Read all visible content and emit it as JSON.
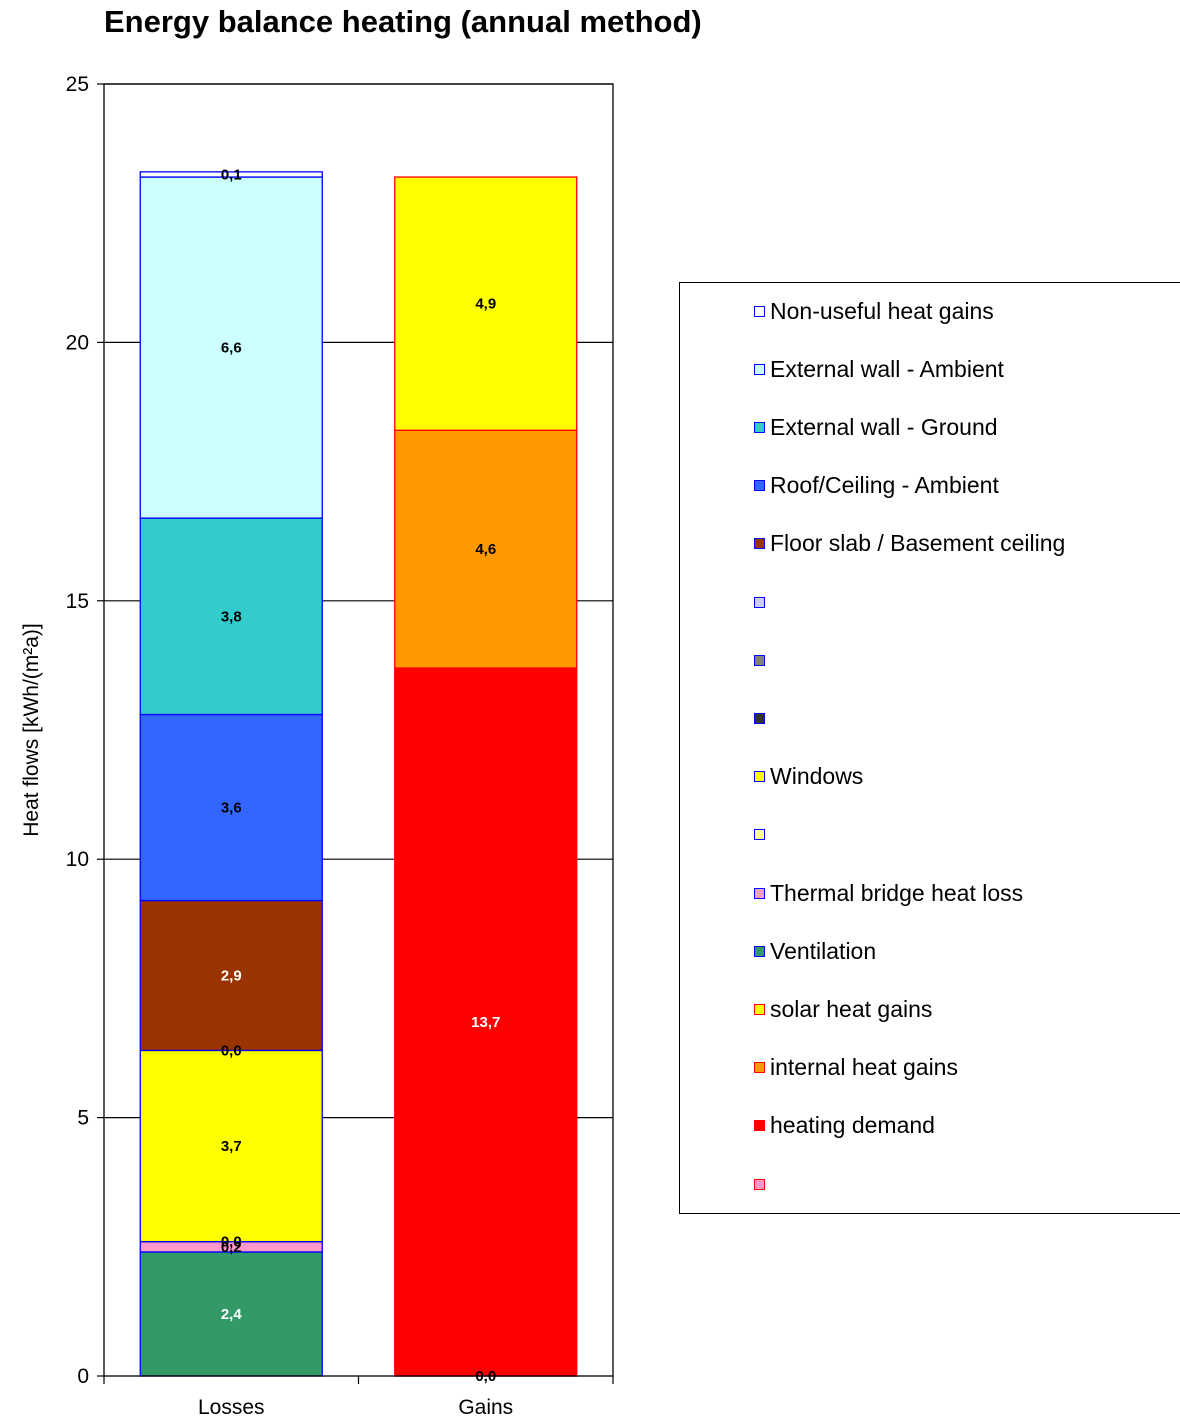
{
  "chart_data": {
    "type": "bar",
    "stacked": true,
    "title": "Energy balance heating (annual method)",
    "ylabel": "Heat flows [kWh/(m²a)]",
    "xlabel": "",
    "categories": [
      "Losses",
      "Gains"
    ],
    "ylim": [
      0,
      25
    ],
    "yticks": [
      "0",
      "5",
      "10",
      "15",
      "20",
      "25"
    ],
    "grid": true,
    "legend_position": "right",
    "series": [
      {
        "name": "Ventilation",
        "values": [
          2.4,
          null
        ],
        "labels": [
          "2,4",
          ""
        ],
        "color": "#339966",
        "border": "#0000ff",
        "label_color": "#ffffff"
      },
      {
        "name": "Thermal bridge heat loss",
        "values": [
          0.2,
          null
        ],
        "labels": [
          "0,2",
          ""
        ],
        "color": "#ff99cc",
        "border": "#0000ff",
        "label_color": "#000000"
      },
      {
        "name": "",
        "values": [
          0.0,
          null
        ],
        "labels": [
          "0,0",
          ""
        ],
        "color": "#ffff99",
        "border": "#0000ff",
        "label_color": "#000000"
      },
      {
        "name": "Windows",
        "values": [
          3.7,
          null
        ],
        "labels": [
          "3,7",
          ""
        ],
        "color": "#ffff00",
        "border": "#0000ff",
        "label_color": "#000000"
      },
      {
        "name": "",
        "values": [
          0.0,
          null
        ],
        "labels": [
          "0,0",
          ""
        ],
        "color": "#333333",
        "border": "#0000ff",
        "label_color": "#000000"
      },
      {
        "name": "Floor slab / Basement ceiling",
        "values": [
          2.9,
          null
        ],
        "labels": [
          "2,9",
          ""
        ],
        "color": "#993300",
        "border": "#0000ff",
        "label_color": "#ffffff"
      },
      {
        "name": "Roof/Ceiling - Ambient",
        "values": [
          3.6,
          null
        ],
        "labels": [
          "3,6",
          ""
        ],
        "color": "#3366ff",
        "border": "#0000ff",
        "label_color": "#000000"
      },
      {
        "name": "External wall - Ground",
        "values": [
          3.8,
          null
        ],
        "labels": [
          "3,8",
          ""
        ],
        "color": "#33cccc",
        "border": "#0000ff",
        "label_color": "#000000"
      },
      {
        "name": "External wall - Ambient",
        "values": [
          6.6,
          null
        ],
        "labels": [
          "6,6",
          ""
        ],
        "color": "#ccffff",
        "border": "#0000ff",
        "label_color": "#000000"
      },
      {
        "name": "Non-useful heat gains",
        "values": [
          0.1,
          null
        ],
        "labels": [
          "0,1",
          ""
        ],
        "color": "#ffffff",
        "border": "#0000ff",
        "label_color": "#000000"
      },
      {
        "name": "",
        "values": [
          null,
          0.0
        ],
        "labels": [
          "",
          "0,0"
        ],
        "color": "#ff99cc",
        "border": "#ff0000",
        "label_color": "#000000"
      },
      {
        "name": "heating demand",
        "values": [
          null,
          13.7
        ],
        "labels": [
          "",
          "13,7"
        ],
        "color": "#ff0000",
        "border": "#ff0000",
        "label_color": "#ffffff"
      },
      {
        "name": "internal heat gains",
        "values": [
          null,
          4.6
        ],
        "labels": [
          "",
          "4,6"
        ],
        "color": "#ff9900",
        "border": "#ff0000",
        "label_color": "#000000"
      },
      {
        "name": "solar heat gains",
        "values": [
          null,
          4.9
        ],
        "labels": [
          "",
          "4,9"
        ],
        "color": "#ffff00",
        "border": "#ff0000",
        "label_color": "#000000"
      }
    ],
    "legend": [
      {
        "label": "Non-useful heat gains",
        "color": "#ffffff",
        "border": "#0000ff"
      },
      {
        "label": "External wall - Ambient",
        "color": "#ccffff",
        "border": "#0000ff"
      },
      {
        "label": "External wall - Ground",
        "color": "#33cccc",
        "border": "#0000ff"
      },
      {
        "label": "Roof/Ceiling - Ambient",
        "color": "#3366ff",
        "border": "#0000ff"
      },
      {
        "label": "Floor slab / Basement ceiling",
        "color": "#993300",
        "border": "#0000ff"
      },
      {
        "label": "",
        "color": "#ccccff",
        "border": "#0000ff"
      },
      {
        "label": "",
        "color": "#808080",
        "border": "#0000ff"
      },
      {
        "label": "",
        "color": "#333333",
        "border": "#0000ff"
      },
      {
        "label": "Windows",
        "color": "#ffff00",
        "border": "#0000ff"
      },
      {
        "label": "",
        "color": "#ffff99",
        "border": "#0000ff"
      },
      {
        "label": "Thermal bridge heat loss",
        "color": "#ff99cc",
        "border": "#0000ff"
      },
      {
        "label": "Ventilation",
        "color": "#339966",
        "border": "#0000ff"
      },
      {
        "label": "solar heat gains",
        "color": "#ffff00",
        "border": "#ff0000"
      },
      {
        "label": "internal heat gains",
        "color": "#ff9900",
        "border": "#ff0000"
      },
      {
        "label": "heating demand",
        "color": "#ff0000",
        "border": "#ff0000"
      },
      {
        "label": "",
        "color": "#ff99cc",
        "border": "#ff0000"
      }
    ]
  }
}
